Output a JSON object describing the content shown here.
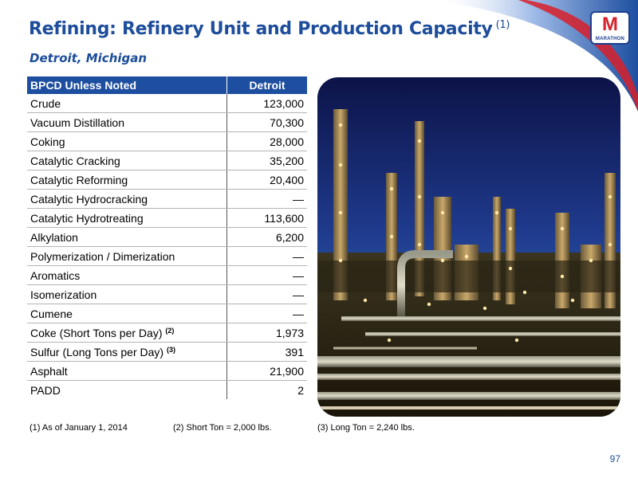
{
  "header": {
    "title": "Refining: Refinery Unit and Production Capacity",
    "title_footnote": "(1)",
    "subtitle": "Detroit, Michigan"
  },
  "logo": {
    "mark": "M",
    "text": "MARATHON"
  },
  "table": {
    "headers": [
      "BPCD Unless Noted",
      "Detroit"
    ],
    "rows": [
      {
        "label": "Crude",
        "note": "",
        "value": "123,000"
      },
      {
        "label": "Vacuum Distillation",
        "note": "",
        "value": "70,300"
      },
      {
        "label": "Coking",
        "note": "",
        "value": "28,000"
      },
      {
        "label": "Catalytic Cracking",
        "note": "",
        "value": "35,200"
      },
      {
        "label": "Catalytic Reforming",
        "note": "",
        "value": "20,400"
      },
      {
        "label": "Catalytic Hydrocracking",
        "note": "",
        "value": "—"
      },
      {
        "label": "Catalytic Hydrotreating",
        "note": "",
        "value": "113,600"
      },
      {
        "label": "Alkylation",
        "note": "",
        "value": "6,200"
      },
      {
        "label": "Polymerization / Dimerization",
        "note": "",
        "value": "—"
      },
      {
        "label": "Aromatics",
        "note": "",
        "value": "—"
      },
      {
        "label": "Isomerization",
        "note": "",
        "value": "—"
      },
      {
        "label": "Cumene",
        "note": "",
        "value": "—"
      },
      {
        "label": "Coke (Short Tons per Day)",
        "note": "(2)",
        "value": "1,973"
      },
      {
        "label": "Sulfur (Long Tons per Day)",
        "note": "(3)",
        "value": "391"
      },
      {
        "label": "Asphalt",
        "note": "",
        "value": "21,900"
      },
      {
        "label": "PADD",
        "note": "",
        "value": "2"
      }
    ]
  },
  "footnotes": [
    "(1) As of January 1, 2014",
    "(2) Short Ton = 2,000 lbs.",
    "(3) Long Ton = 2,240 lbs."
  ],
  "page_number": "97",
  "colors": {
    "brand_blue": "#1d4d9b",
    "header_blue": "#1d4ea0",
    "brand_red": "#d8202a"
  }
}
